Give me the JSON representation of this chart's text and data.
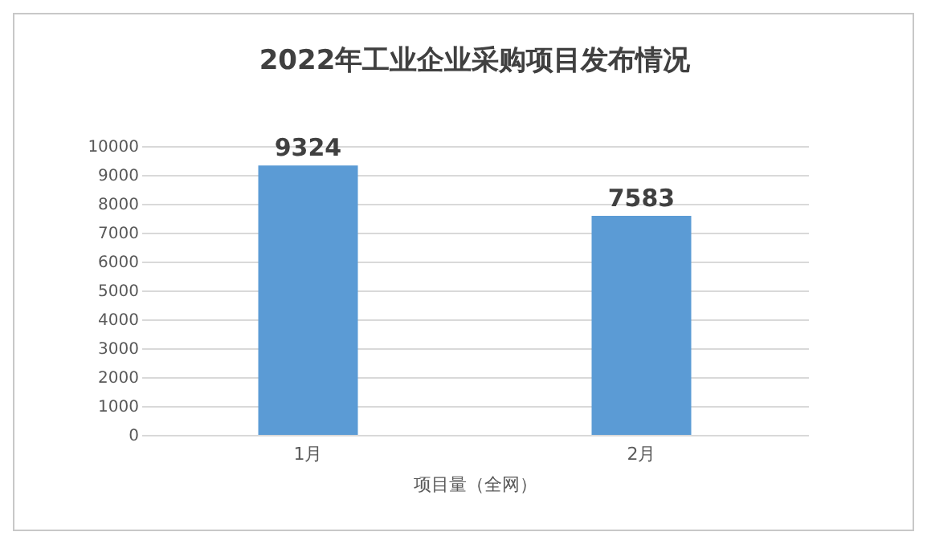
{
  "chart_data": {
    "type": "bar",
    "title": "2022年工业企业采购项目发布情况",
    "xlabel": "项目量（全网）",
    "categories": [
      "1月",
      "2月"
    ],
    "series": [
      {
        "color": "#5b9bd5",
        "values": [
          9324,
          7583
        ]
      }
    ],
    "ylim": [
      0,
      10000
    ],
    "yticks": [
      0,
      1000,
      2000,
      3000,
      4000,
      5000,
      6000,
      7000,
      8000,
      9000,
      10000
    ],
    "grid": "y",
    "data_labels": true
  }
}
